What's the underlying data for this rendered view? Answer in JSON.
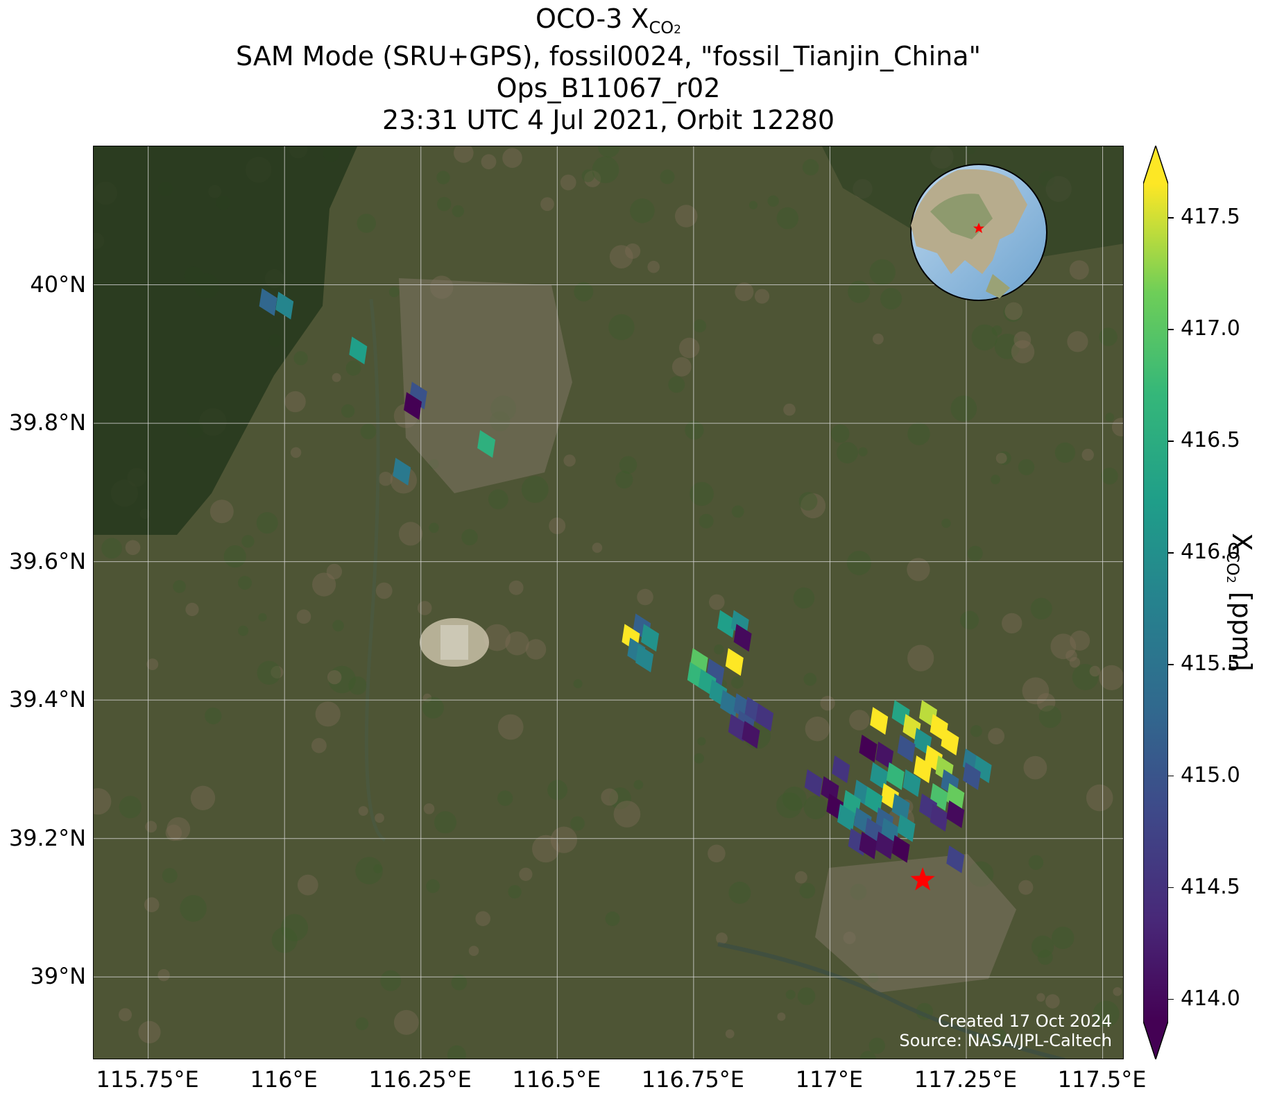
{
  "title": {
    "line1_main": "OCO-3 X",
    "line1_sub": "CO",
    "line1_sub2": "2",
    "line2": "SAM Mode (SRU+GPS), fossil0024, \"fossil_Tianjin_China\"",
    "line3": "Ops_B11067_r02",
    "line4": "23:31 UTC 4 Jul 2021, Orbit 12280"
  },
  "map": {
    "lon_range": [
      115.65,
      117.54
    ],
    "lat_range": [
      38.88,
      40.2
    ],
    "x_ticks": [
      "115.75°E",
      "116°E",
      "116.25°E",
      "116.5°E",
      "116.75°E",
      "117°E",
      "117.25°E",
      "117.5°E"
    ],
    "x_tick_values": [
      115.75,
      116.0,
      116.25,
      116.5,
      116.75,
      117.0,
      117.25,
      117.5
    ],
    "y_ticks": [
      "40°N",
      "39.8°N",
      "39.6°N",
      "39.4°N",
      "39.2°N",
      "39°N"
    ],
    "y_tick_values": [
      40.0,
      39.8,
      39.6,
      39.4,
      39.2,
      39.0
    ],
    "grid": true,
    "target": {
      "name": "fossil_Tianjin_China",
      "lon": 117.17,
      "lat": 39.14,
      "color": "#ff0000"
    },
    "inset_globe": {
      "position": "top-right",
      "marker_color": "#ff0000"
    },
    "credit_line1": "Created 17 Oct 2024",
    "credit_line2": "Source: NASA/JPL-Caltech"
  },
  "colorbar": {
    "label_main": "X",
    "label_sub": "CO",
    "label_sub2": "2",
    "label_unit": " [ppm]",
    "range": [
      413.9,
      417.65
    ],
    "ticks": [
      "414.0",
      "414.5",
      "415.0",
      "415.5",
      "416.0",
      "416.5",
      "417.0",
      "417.5"
    ],
    "tick_values": [
      414.0,
      414.5,
      415.0,
      415.5,
      416.0,
      416.5,
      417.0,
      417.5
    ],
    "colormap": "viridis",
    "extend": "both"
  },
  "chart_data": {
    "type": "scatter",
    "title": "OCO-3 XCO2 — SAM Mode (SRU+GPS), fossil0024, \"fossil_Tianjin_China\" — Ops_B11067_r02 — 23:31 UTC 4 Jul 2021, Orbit 12280",
    "xlabel": "",
    "ylabel": "",
    "xlim": [
      115.65,
      117.54
    ],
    "ylim": [
      38.88,
      40.2
    ],
    "color_variable": "XCO2 [ppm]",
    "soundings": [
      {
        "lon": 115.97,
        "lat": 39.975,
        "xco2": 415.3
      },
      {
        "lon": 116.0,
        "lat": 39.97,
        "xco2": 415.8
      },
      {
        "lon": 116.135,
        "lat": 39.905,
        "xco2": 416.2
      },
      {
        "lon": 116.245,
        "lat": 39.84,
        "xco2": 415.0
      },
      {
        "lon": 116.235,
        "lat": 39.825,
        "xco2": 414.0
      },
      {
        "lon": 116.37,
        "lat": 39.77,
        "xco2": 416.5
      },
      {
        "lon": 116.215,
        "lat": 39.73,
        "xco2": 415.6
      },
      {
        "lon": 116.655,
        "lat": 39.505,
        "xco2": 415.2
      },
      {
        "lon": 116.635,
        "lat": 39.49,
        "xco2": 417.5
      },
      {
        "lon": 116.67,
        "lat": 39.49,
        "xco2": 416.0
      },
      {
        "lon": 116.645,
        "lat": 39.47,
        "xco2": 415.6
      },
      {
        "lon": 116.66,
        "lat": 39.46,
        "xco2": 415.8
      },
      {
        "lon": 116.81,
        "lat": 39.51,
        "xco2": 416.2
      },
      {
        "lon": 116.835,
        "lat": 39.51,
        "xco2": 415.9
      },
      {
        "lon": 116.84,
        "lat": 39.49,
        "xco2": 414.1
      },
      {
        "lon": 116.825,
        "lat": 39.455,
        "xco2": 417.6
      },
      {
        "lon": 116.76,
        "lat": 39.455,
        "xco2": 416.9
      },
      {
        "lon": 116.79,
        "lat": 39.44,
        "xco2": 415.0
      },
      {
        "lon": 116.755,
        "lat": 39.435,
        "xco2": 416.6
      },
      {
        "lon": 116.775,
        "lat": 39.425,
        "xco2": 416.3
      },
      {
        "lon": 116.795,
        "lat": 39.41,
        "xco2": 416.0
      },
      {
        "lon": 116.815,
        "lat": 39.395,
        "xco2": 415.5
      },
      {
        "lon": 116.84,
        "lat": 39.39,
        "xco2": 415.2
      },
      {
        "lon": 116.86,
        "lat": 39.385,
        "xco2": 414.8
      },
      {
        "lon": 116.88,
        "lat": 39.375,
        "xco2": 414.6
      },
      {
        "lon": 116.845,
        "lat": 39.365,
        "xco2": 415.0
      },
      {
        "lon": 116.83,
        "lat": 39.36,
        "xco2": 414.5
      },
      {
        "lon": 116.855,
        "lat": 39.35,
        "xco2": 414.2
      },
      {
        "lon": 117.09,
        "lat": 39.37,
        "xco2": 417.6
      },
      {
        "lon": 117.13,
        "lat": 39.38,
        "xco2": 416.3
      },
      {
        "lon": 117.15,
        "lat": 39.36,
        "xco2": 417.4
      },
      {
        "lon": 117.18,
        "lat": 39.38,
        "xco2": 417.3
      },
      {
        "lon": 117.2,
        "lat": 39.36,
        "xco2": 417.5
      },
      {
        "lon": 117.17,
        "lat": 39.34,
        "xco2": 416.0
      },
      {
        "lon": 117.22,
        "lat": 39.34,
        "xco2": 417.6
      },
      {
        "lon": 117.07,
        "lat": 39.33,
        "xco2": 414.0
      },
      {
        "lon": 117.1,
        "lat": 39.32,
        "xco2": 414.2
      },
      {
        "lon": 117.14,
        "lat": 39.33,
        "xco2": 415.0
      },
      {
        "lon": 117.19,
        "lat": 39.315,
        "xco2": 417.5
      },
      {
        "lon": 117.21,
        "lat": 39.3,
        "xco2": 417.2
      },
      {
        "lon": 117.17,
        "lat": 39.3,
        "xco2": 417.6
      },
      {
        "lon": 117.26,
        "lat": 39.31,
        "xco2": 415.6
      },
      {
        "lon": 117.28,
        "lat": 39.3,
        "xco2": 415.9
      },
      {
        "lon": 117.26,
        "lat": 39.29,
        "xco2": 415.0
      },
      {
        "lon": 117.02,
        "lat": 39.3,
        "xco2": 414.6
      },
      {
        "lon": 117.09,
        "lat": 39.29,
        "xco2": 416.0
      },
      {
        "lon": 117.12,
        "lat": 39.29,
        "xco2": 416.6
      },
      {
        "lon": 117.15,
        "lat": 39.28,
        "xco2": 416.0
      },
      {
        "lon": 117.22,
        "lat": 39.28,
        "xco2": 415.3
      },
      {
        "lon": 116.97,
        "lat": 39.28,
        "xco2": 414.6
      },
      {
        "lon": 117.0,
        "lat": 39.27,
        "xco2": 414.1
      },
      {
        "lon": 117.06,
        "lat": 39.265,
        "xco2": 415.8
      },
      {
        "lon": 117.11,
        "lat": 39.26,
        "xco2": 417.5
      },
      {
        "lon": 117.08,
        "lat": 39.255,
        "xco2": 416.2
      },
      {
        "lon": 117.2,
        "lat": 39.26,
        "xco2": 416.8
      },
      {
        "lon": 117.23,
        "lat": 39.26,
        "xco2": 417.0
      },
      {
        "lon": 117.01,
        "lat": 39.245,
        "xco2": 414.0
      },
      {
        "lon": 117.04,
        "lat": 39.25,
        "xco2": 416.3
      },
      {
        "lon": 117.13,
        "lat": 39.245,
        "xco2": 415.6
      },
      {
        "lon": 117.18,
        "lat": 39.245,
        "xco2": 414.6
      },
      {
        "lon": 117.03,
        "lat": 39.23,
        "xco2": 416.0
      },
      {
        "lon": 117.06,
        "lat": 39.225,
        "xco2": 415.4
      },
      {
        "lon": 117.1,
        "lat": 39.225,
        "xco2": 415.2
      },
      {
        "lon": 117.2,
        "lat": 39.23,
        "xco2": 414.5
      },
      {
        "lon": 117.23,
        "lat": 39.235,
        "xco2": 414.1
      },
      {
        "lon": 117.08,
        "lat": 39.21,
        "xco2": 415.0
      },
      {
        "lon": 117.11,
        "lat": 39.21,
        "xco2": 415.5
      },
      {
        "lon": 117.14,
        "lat": 39.215,
        "xco2": 416.0
      },
      {
        "lon": 117.05,
        "lat": 39.195,
        "xco2": 414.7
      },
      {
        "lon": 117.07,
        "lat": 39.19,
        "xco2": 414.1
      },
      {
        "lon": 117.1,
        "lat": 39.19,
        "xco2": 414.2
      },
      {
        "lon": 117.13,
        "lat": 39.185,
        "xco2": 414.0
      },
      {
        "lon": 117.23,
        "lat": 39.17,
        "xco2": 414.8
      }
    ]
  }
}
